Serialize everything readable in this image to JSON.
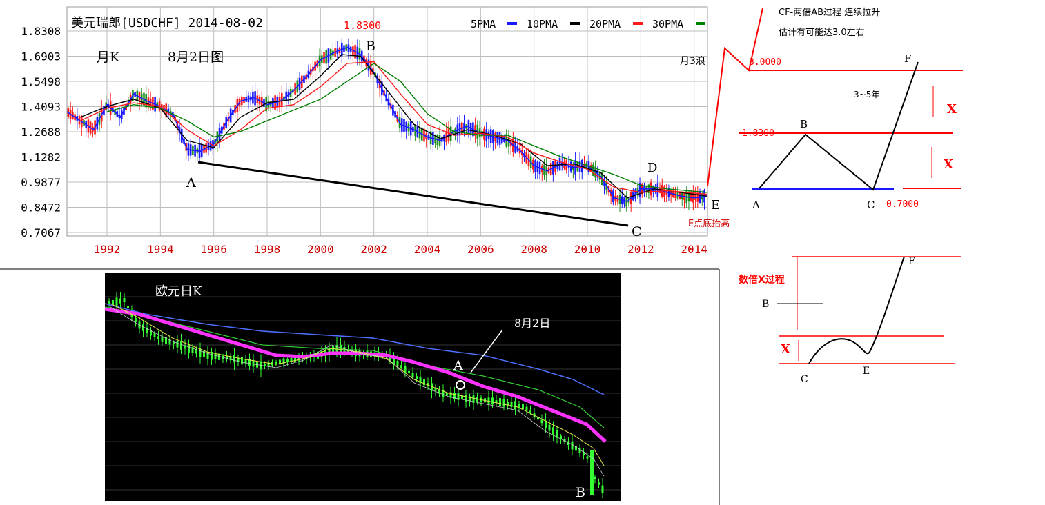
{
  "colors": {
    "ma5": "#1a1aff",
    "ma10": "#000000",
    "ma20": "#ff1a1a",
    "ma30": "#008000",
    "up_candle": "#1a1aff",
    "down_candle": "#ff1a1a",
    "green_candle": "#1f8f1f",
    "axis_year": "#cc0000",
    "annot_red": "#ff0000",
    "euro_bg": "#000000",
    "euro_ma_magenta": "#ff33ff",
    "euro_ma_blue": "#4d6fff",
    "euro_ma_green": "#33cc33",
    "euro_ma_yellow": "#e6e64d",
    "euro_candle": "#33ff33"
  },
  "top_chart": {
    "title": "美元瑞郎[USDCHF] 2014-08-02",
    "peak_label": "1.8300",
    "legend": [
      {
        "name": "5PMA",
        "color": "#1a1aff"
      },
      {
        "name": "10PMA",
        "color": "#000000"
      },
      {
        "name": "20PMA",
        "color": "#ff1a1a"
      },
      {
        "name": "30PMA",
        "color": "#008000"
      }
    ],
    "period_label": "月K",
    "date_label": "8月2日图",
    "wave_label": "月3浪",
    "e_note": "E点底抬高",
    "wave_points": [
      "A",
      "B",
      "C",
      "D",
      "E"
    ]
  },
  "chart_data": [
    {
      "type": "line",
      "title": "美元瑞郎[USDCHF] 2014-08-02",
      "xlabel": "",
      "ylabel": "",
      "x_ticks": [
        "1992",
        "1994",
        "1996",
        "1998",
        "2000",
        "2002",
        "2004",
        "2006",
        "2008",
        "2010",
        "2012",
        "2014"
      ],
      "y_ticks": [
        "1.8308",
        "1.6903",
        "1.5498",
        "1.4093",
        "1.2688",
        "1.1282",
        "0.9877",
        "0.8472",
        "0.7067"
      ],
      "ylim": [
        0.7067,
        1.8308
      ],
      "xlim": [
        1990.5,
        2014.5
      ],
      "grid": true,
      "legend_position": "top-right",
      "series": [
        {
          "name": "5PMA",
          "x": [
            1990.5,
            1991.5,
            1992.0,
            1992.5,
            1993.0,
            1993.5,
            1994.0,
            1994.5,
            1995.0,
            1995.5,
            1996.0,
            1996.5,
            1997.0,
            1997.5,
            1998.0,
            1998.5,
            1999.0,
            1999.5,
            2000.0,
            2000.5,
            2001.0,
            2001.5,
            2002.0,
            2002.5,
            2003.0,
            2003.5,
            2004.0,
            2004.5,
            2005.0,
            2005.5,
            2006.0,
            2006.5,
            2007.0,
            2007.5,
            2008.0,
            2008.5,
            2009.0,
            2009.5,
            2010.0,
            2010.5,
            2011.0,
            2011.5,
            2012.0,
            2012.5,
            2013.0,
            2013.5,
            2014.0,
            2014.5
          ],
          "values": [
            1.38,
            1.28,
            1.42,
            1.35,
            1.48,
            1.44,
            1.41,
            1.36,
            1.17,
            1.16,
            1.2,
            1.33,
            1.44,
            1.46,
            1.42,
            1.44,
            1.5,
            1.58,
            1.67,
            1.71,
            1.74,
            1.7,
            1.6,
            1.45,
            1.31,
            1.28,
            1.24,
            1.22,
            1.27,
            1.3,
            1.26,
            1.24,
            1.22,
            1.16,
            1.08,
            1.05,
            1.09,
            1.07,
            1.08,
            1.02,
            0.9,
            0.88,
            0.95,
            0.95,
            0.93,
            0.91,
            0.9,
            0.91
          ]
        },
        {
          "name": "10PMA",
          "x": [
            1991.0,
            1992.0,
            1993.0,
            1994.0,
            1995.0,
            1996.0,
            1997.0,
            1998.0,
            1999.0,
            2000.0,
            2000.8,
            2001.5,
            2002.5,
            2003.5,
            2004.5,
            2005.5,
            2006.5,
            2007.5,
            2008.5,
            2009.5,
            2010.5,
            2011.5,
            2012.5,
            2013.5,
            2014.5
          ],
          "values": [
            1.35,
            1.41,
            1.45,
            1.4,
            1.22,
            1.18,
            1.35,
            1.43,
            1.45,
            1.58,
            1.7,
            1.69,
            1.5,
            1.31,
            1.23,
            1.28,
            1.25,
            1.2,
            1.08,
            1.09,
            1.04,
            0.9,
            0.95,
            0.93,
            0.91
          ]
        },
        {
          "name": "20PMA",
          "x": [
            1991.0,
            1992.0,
            1993.0,
            1994.0,
            1995.0,
            1996.0,
            1997.0,
            1998.0,
            1999.0,
            2000.0,
            2001.0,
            2002.0,
            2003.0,
            2004.0,
            2005.0,
            2006.0,
            2007.0,
            2008.0,
            2009.0,
            2010.0,
            2011.0,
            2012.0,
            2013.0,
            2014.5
          ],
          "values": [
            1.33,
            1.4,
            1.43,
            1.41,
            1.28,
            1.19,
            1.28,
            1.4,
            1.42,
            1.52,
            1.65,
            1.66,
            1.48,
            1.31,
            1.25,
            1.26,
            1.24,
            1.15,
            1.1,
            1.06,
            0.96,
            0.93,
            0.94,
            0.92
          ]
        },
        {
          "name": "30PMA",
          "x": [
            1992.0,
            1993.0,
            1994.0,
            1995.0,
            1996.0,
            1997.0,
            1998.0,
            1999.0,
            2000.0,
            2001.0,
            2002.0,
            2003.0,
            2004.0,
            2005.0,
            2006.0,
            2007.0,
            2008.0,
            2009.0,
            2010.0,
            2011.0,
            2012.0,
            2013.0,
            2014.5
          ],
          "values": [
            1.38,
            1.42,
            1.4,
            1.33,
            1.24,
            1.27,
            1.33,
            1.39,
            1.45,
            1.55,
            1.65,
            1.55,
            1.37,
            1.27,
            1.25,
            1.25,
            1.19,
            1.13,
            1.08,
            1.03,
            0.97,
            0.95,
            0.93
          ]
        }
      ]
    }
  ],
  "euro_chart": {
    "title": "欧元日K",
    "date_note": "8月2日",
    "points": [
      "A",
      "B"
    ]
  },
  "diagram_top": {
    "title_line1": "CF-两倍AB过程 连续拉升",
    "title_line2": "估计有可能达3.0左右",
    "level_high": "3.0000",
    "level_mid": "1.8300",
    "level_low": "0.7000",
    "duration": "3~5年",
    "x_mark": "X",
    "points": [
      "A",
      "B",
      "C",
      "F"
    ]
  },
  "diagram_bottom": {
    "note": "数倍X过程",
    "x_mark": "X",
    "points": [
      "B",
      "C",
      "E",
      "F"
    ]
  }
}
